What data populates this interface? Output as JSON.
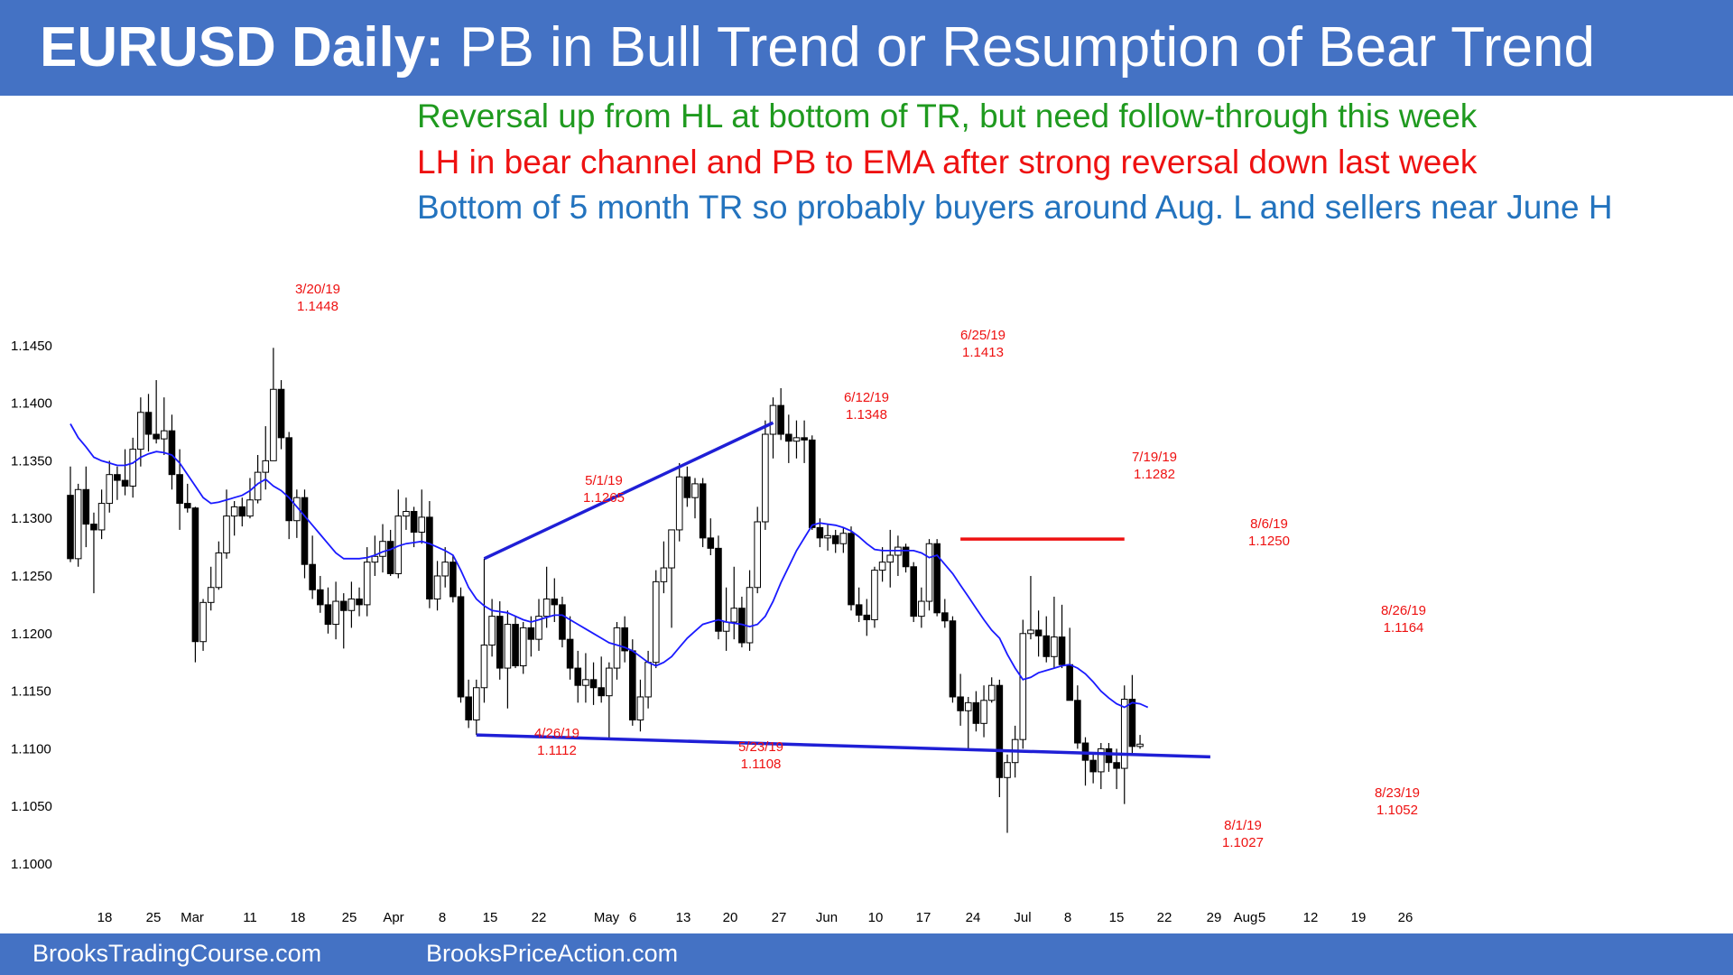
{
  "header": {
    "title_bold": "EURUSD Daily:",
    "title_rest": "PB in Bull Trend or Resumption of Bear Trend"
  },
  "notes": {
    "bull": "Reversal up from HL at bottom of TR, but need follow-through this week",
    "bear": "LH in bear channel and PB to EMA after strong reversal down last week",
    "range": "Bottom of 5 month TR so probably buyers around Aug. L and sellers near June H"
  },
  "footer": {
    "left": "BrooksTradingCourse.com",
    "right": "BrooksPriceAction.com"
  },
  "colors": {
    "banner": "#4472c4",
    "bull_note": "#1f9a1f",
    "bear_note": "#ee1111",
    "range_note": "#2373be",
    "ema": "#1a1aff",
    "trendline": "#1f1fd6",
    "resistance": "#ee1111",
    "annotation": "#ee1111"
  },
  "chart_data": {
    "type": "candlestick",
    "ylim": [
      1.1,
      1.146
    ],
    "y_ticks": [
      "1.1000",
      "1.1050",
      "1.1100",
      "1.1150",
      "1.1200",
      "1.1250",
      "1.1300",
      "1.1350",
      "1.1400",
      "1.1450"
    ],
    "x_labels": [
      "18",
      "25",
      "Mar",
      "11",
      "18",
      "25",
      "Apr",
      "8",
      "15",
      "22",
      "May",
      "6",
      "13",
      "20",
      "27",
      "Jun",
      "10",
      "17",
      "24",
      "Jul",
      "8",
      "15",
      "22",
      "29",
      "Aug",
      "5",
      "12",
      "19",
      "26"
    ],
    "candles_ohlc": [
      [
        1.132,
        1.1345,
        1.1262,
        1.1265
      ],
      [
        1.1265,
        1.133,
        1.1258,
        1.1325
      ],
      [
        1.1325,
        1.1345,
        1.1275,
        1.1295
      ],
      [
        1.1295,
        1.1305,
        1.1235,
        1.129
      ],
      [
        1.129,
        1.1325,
        1.1282,
        1.1313
      ],
      [
        1.1313,
        1.135,
        1.1305,
        1.1338
      ],
      [
        1.1338,
        1.1345,
        1.1316,
        1.1333
      ],
      [
        1.1333,
        1.136,
        1.132,
        1.1328
      ],
      [
        1.1328,
        1.137,
        1.1318,
        1.136
      ],
      [
        1.136,
        1.1405,
        1.1345,
        1.1392
      ],
      [
        1.1392,
        1.1408,
        1.1358,
        1.1373
      ],
      [
        1.1373,
        1.142,
        1.1365,
        1.1369
      ],
      [
        1.1369,
        1.1405,
        1.1355,
        1.1376
      ],
      [
        1.1376,
        1.139,
        1.1325,
        1.1338
      ],
      [
        1.1338,
        1.136,
        1.129,
        1.1313
      ],
      [
        1.1313,
        1.133,
        1.1305,
        1.1309
      ],
      [
        1.1309,
        1.131,
        1.1175,
        1.1193
      ],
      [
        1.1193,
        1.123,
        1.1185,
        1.1227
      ],
      [
        1.1227,
        1.1258,
        1.122,
        1.124
      ],
      [
        1.124,
        1.128,
        1.1238,
        1.127
      ],
      [
        1.127,
        1.1325,
        1.1265,
        1.1302
      ],
      [
        1.1302,
        1.1315,
        1.1285,
        1.131
      ],
      [
        1.131,
        1.1318,
        1.1293,
        1.1302
      ],
      [
        1.1302,
        1.1335,
        1.13,
        1.1316
      ],
      [
        1.1316,
        1.1355,
        1.1313,
        1.134
      ],
      [
        1.134,
        1.138,
        1.1325,
        1.135
      ],
      [
        1.135,
        1.1448,
        1.135,
        1.1412
      ],
      [
        1.1412,
        1.142,
        1.136,
        1.137
      ],
      [
        1.137,
        1.1375,
        1.1282,
        1.1298
      ],
      [
        1.1298,
        1.1325,
        1.1283,
        1.1318
      ],
      [
        1.1318,
        1.1325,
        1.1248,
        1.126
      ],
      [
        1.126,
        1.1285,
        1.123,
        1.1238
      ],
      [
        1.1238,
        1.125,
        1.1218,
        1.1225
      ],
      [
        1.1225,
        1.124,
        1.12,
        1.1208
      ],
      [
        1.1208,
        1.1245,
        1.1195,
        1.1228
      ],
      [
        1.1228,
        1.1235,
        1.1187,
        1.122
      ],
      [
        1.122,
        1.1245,
        1.1205,
        1.123
      ],
      [
        1.123,
        1.124,
        1.1215,
        1.1225
      ],
      [
        1.1225,
        1.1275,
        1.1215,
        1.1262
      ],
      [
        1.1262,
        1.1285,
        1.125,
        1.1267
      ],
      [
        1.1267,
        1.1295,
        1.1253,
        1.128
      ],
      [
        1.128,
        1.129,
        1.125,
        1.1252
      ],
      [
        1.1252,
        1.1325,
        1.1248,
        1.1302
      ],
      [
        1.1302,
        1.1318,
        1.129,
        1.1306
      ],
      [
        1.1306,
        1.131,
        1.1275,
        1.1288
      ],
      [
        1.1288,
        1.1325,
        1.1278,
        1.1301
      ],
      [
        1.1301,
        1.1315,
        1.1222,
        1.123
      ],
      [
        1.123,
        1.1263,
        1.122,
        1.125
      ],
      [
        1.125,
        1.1275,
        1.124,
        1.1262
      ],
      [
        1.1262,
        1.1268,
        1.1227,
        1.1232
      ],
      [
        1.1232,
        1.124,
        1.114,
        1.1145
      ],
      [
        1.1145,
        1.116,
        1.1118,
        1.1125
      ],
      [
        1.1125,
        1.116,
        1.1112,
        1.1153
      ],
      [
        1.1153,
        1.1265,
        1.114,
        1.119
      ],
      [
        1.119,
        1.123,
        1.118,
        1.1215
      ],
      [
        1.1215,
        1.1228,
        1.116,
        1.117
      ],
      [
        1.117,
        1.122,
        1.1135,
        1.1208
      ],
      [
        1.1208,
        1.1215,
        1.117,
        1.1172
      ],
      [
        1.1172,
        1.121,
        1.1165,
        1.1205
      ],
      [
        1.1205,
        1.1215,
        1.118,
        1.1195
      ],
      [
        1.1195,
        1.123,
        1.1185,
        1.1215
      ],
      [
        1.1215,
        1.1258,
        1.1205,
        1.123
      ],
      [
        1.123,
        1.1248,
        1.121,
        1.1225
      ],
      [
        1.1225,
        1.1232,
        1.1188,
        1.1195
      ],
      [
        1.1195,
        1.1215,
        1.116,
        1.117
      ],
      [
        1.117,
        1.1185,
        1.114,
        1.1155
      ],
      [
        1.1155,
        1.1183,
        1.114,
        1.116
      ],
      [
        1.116,
        1.1175,
        1.1138,
        1.1153
      ],
      [
        1.1153,
        1.118,
        1.114,
        1.1146
      ],
      [
        1.1146,
        1.1175,
        1.1108,
        1.117
      ],
      [
        1.117,
        1.121,
        1.116,
        1.1205
      ],
      [
        1.1205,
        1.1215,
        1.1175,
        1.1185
      ],
      [
        1.1185,
        1.1195,
        1.112,
        1.1125
      ],
      [
        1.1125,
        1.116,
        1.1115,
        1.1145
      ],
      [
        1.1145,
        1.1185,
        1.1135,
        1.1175
      ],
      [
        1.1175,
        1.1255,
        1.117,
        1.1245
      ],
      [
        1.1245,
        1.128,
        1.1235,
        1.1257
      ],
      [
        1.1257,
        1.129,
        1.1205,
        1.129
      ],
      [
        1.129,
        1.1348,
        1.128,
        1.1336
      ],
      [
        1.1336,
        1.1345,
        1.131,
        1.1318
      ],
      [
        1.1318,
        1.1335,
        1.13,
        1.133
      ],
      [
        1.133,
        1.1335,
        1.1275,
        1.1283
      ],
      [
        1.1283,
        1.13,
        1.1268,
        1.1274
      ],
      [
        1.1274,
        1.1285,
        1.1195,
        1.1202
      ],
      [
        1.1202,
        1.124,
        1.1185,
        1.121
      ],
      [
        1.121,
        1.1258,
        1.1195,
        1.1222
      ],
      [
        1.1222,
        1.1232,
        1.1188,
        1.1192
      ],
      [
        1.1192,
        1.1255,
        1.1185,
        1.124
      ],
      [
        1.124,
        1.131,
        1.1235,
        1.1297
      ],
      [
        1.1297,
        1.1385,
        1.129,
        1.1373
      ],
      [
        1.1373,
        1.1405,
        1.1352,
        1.1398
      ],
      [
        1.1398,
        1.1413,
        1.1368,
        1.1373
      ],
      [
        1.1373,
        1.139,
        1.1348,
        1.1367
      ],
      [
        1.1367,
        1.1385,
        1.1352,
        1.137
      ],
      [
        1.137,
        1.1385,
        1.1348,
        1.1368
      ],
      [
        1.1368,
        1.1372,
        1.129,
        1.1292
      ],
      [
        1.1292,
        1.13,
        1.1275,
        1.1283
      ],
      [
        1.1283,
        1.1295,
        1.1272,
        1.1285
      ],
      [
        1.1285,
        1.129,
        1.127,
        1.1278
      ],
      [
        1.1278,
        1.1292,
        1.127,
        1.1287
      ],
      [
        1.1287,
        1.1293,
        1.122,
        1.1225
      ],
      [
        1.1225,
        1.124,
        1.121,
        1.1216
      ],
      [
        1.1216,
        1.123,
        1.1198,
        1.1212
      ],
      [
        1.1212,
        1.1258,
        1.1205,
        1.1255
      ],
      [
        1.1255,
        1.1275,
        1.1245,
        1.1262
      ],
      [
        1.1262,
        1.129,
        1.124,
        1.1268
      ],
      [
        1.1268,
        1.1285,
        1.125,
        1.1275
      ],
      [
        1.1275,
        1.1278,
        1.1253,
        1.1258
      ],
      [
        1.1258,
        1.1262,
        1.121,
        1.1215
      ],
      [
        1.1215,
        1.124,
        1.1205,
        1.1228
      ],
      [
        1.1228,
        1.1282,
        1.122,
        1.1278
      ],
      [
        1.1278,
        1.1282,
        1.1215,
        1.1218
      ],
      [
        1.1218,
        1.123,
        1.1205,
        1.1211
      ],
      [
        1.1211,
        1.1215,
        1.114,
        1.1145
      ],
      [
        1.1145,
        1.1165,
        1.112,
        1.1133
      ],
      [
        1.1133,
        1.1145,
        1.1098,
        1.114
      ],
      [
        1.114,
        1.115,
        1.1115,
        1.1122
      ],
      [
        1.1122,
        1.1155,
        1.111,
        1.1142
      ],
      [
        1.1142,
        1.1162,
        1.114,
        1.1155
      ],
      [
        1.1155,
        1.116,
        1.1058,
        1.1075
      ],
      [
        1.1075,
        1.1095,
        1.1027,
        1.1088
      ],
      [
        1.1088,
        1.112,
        1.1075,
        1.1108
      ],
      [
        1.1108,
        1.1212,
        1.11,
        1.12
      ],
      [
        1.12,
        1.125,
        1.1195,
        1.1203
      ],
      [
        1.1203,
        1.122,
        1.118,
        1.1198
      ],
      [
        1.1198,
        1.1215,
        1.1175,
        1.118
      ],
      [
        1.118,
        1.1232,
        1.117,
        1.1197
      ],
      [
        1.1197,
        1.1225,
        1.117,
        1.1173
      ],
      [
        1.1173,
        1.1205,
        1.1145,
        1.1142
      ],
      [
        1.1142,
        1.1155,
        1.11,
        1.1105
      ],
      [
        1.1105,
        1.111,
        1.1068,
        1.109
      ],
      [
        1.109,
        1.1095,
        1.107,
        1.108
      ],
      [
        1.108,
        1.1105,
        1.1065,
        1.11
      ],
      [
        1.11,
        1.1105,
        1.108,
        1.1088
      ],
      [
        1.1088,
        1.11,
        1.1065,
        1.1083
      ],
      [
        1.1083,
        1.1155,
        1.1052,
        1.1143
      ],
      [
        1.1143,
        1.1164,
        1.1095,
        1.1102
      ],
      [
        1.1102,
        1.1112,
        1.11,
        1.1104
      ]
    ],
    "ema_20": [
      1.1382,
      1.137,
      1.1362,
      1.1353,
      1.135,
      1.1348,
      1.1346,
      1.1346,
      1.1348,
      1.1353,
      1.1356,
      1.1358,
      1.1357,
      1.1355,
      1.1348,
      1.1338,
      1.1328,
      1.1318,
      1.1313,
      1.1314,
      1.1316,
      1.1318,
      1.132,
      1.1324,
      1.133,
      1.1334,
      1.1328,
      1.1324,
      1.1318,
      1.131,
      1.1302,
      1.1294,
      1.1286,
      1.1278,
      1.127,
      1.1265,
      1.1265,
      1.1265,
      1.1266,
      1.1268,
      1.1271,
      1.1273,
      1.1276,
      1.1278,
      1.1279,
      1.128,
      1.1278,
      1.1275,
      1.1272,
      1.1268,
      1.1255,
      1.124,
      1.123,
      1.1224,
      1.122,
      1.1219,
      1.1218,
      1.1215,
      1.1212,
      1.121,
      1.1212,
      1.1214,
      1.1216,
      1.1216,
      1.1212,
      1.1208,
      1.1204,
      1.12,
      1.1196,
      1.1192,
      1.119,
      1.1188,
      1.1185,
      1.118,
      1.1175,
      1.1172,
      1.1175,
      1.118,
      1.1188,
      1.1196,
      1.1202,
      1.1208,
      1.121,
      1.1212,
      1.121,
      1.1209,
      1.1208,
      1.1206,
      1.1208,
      1.1215,
      1.1228,
      1.1244,
      1.1258,
      1.1272,
      1.1283,
      1.1294,
      1.1296,
      1.1295,
      1.1294,
      1.1292,
      1.1289,
      1.1284,
      1.1278,
      1.1273,
      1.1272,
      1.1272,
      1.1272,
      1.1272,
      1.1272,
      1.127,
      1.1266,
      1.1268,
      1.126,
      1.1252,
      1.1242,
      1.1232,
      1.1222,
      1.1212,
      1.1203,
      1.1196,
      1.1182,
      1.117,
      1.116,
      1.1162,
      1.1166,
      1.1168,
      1.117,
      1.1172,
      1.1173,
      1.117,
      1.1165,
      1.1158,
      1.115,
      1.1144,
      1.1139,
      1.1136,
      1.114,
      1.1139,
      1.1136
    ],
    "annotations": [
      {
        "date": "3/20/19",
        "value": "1.1448"
      },
      {
        "date": "6/25/19",
        "value": "1.1413"
      },
      {
        "date": "6/12/19",
        "value": "1.1348"
      },
      {
        "date": "5/1/19",
        "value": "1.1265"
      },
      {
        "date": "7/19/19",
        "value": "1.1282"
      },
      {
        "date": "8/6/19",
        "value": "1.1250"
      },
      {
        "date": "8/26/19",
        "value": "1.1164"
      },
      {
        "date": "4/26/19",
        "value": "1.1112"
      },
      {
        "date": "5/23/19",
        "value": "1.1108"
      },
      {
        "date": "8/1/19",
        "value": "1.1027"
      },
      {
        "date": "8/23/19",
        "value": "1.1052"
      }
    ],
    "trendlines": [
      {
        "name": "upper",
        "from": [
          53,
          1.1265
        ],
        "to": [
          90,
          1.1383
        ]
      },
      {
        "name": "lower",
        "from": [
          52,
          1.1112
        ],
        "to": [
          146,
          1.1093
        ]
      },
      {
        "name": "resistance",
        "from": [
          114,
          1.1282
        ],
        "to": [
          135,
          1.1282
        ]
      }
    ]
  }
}
